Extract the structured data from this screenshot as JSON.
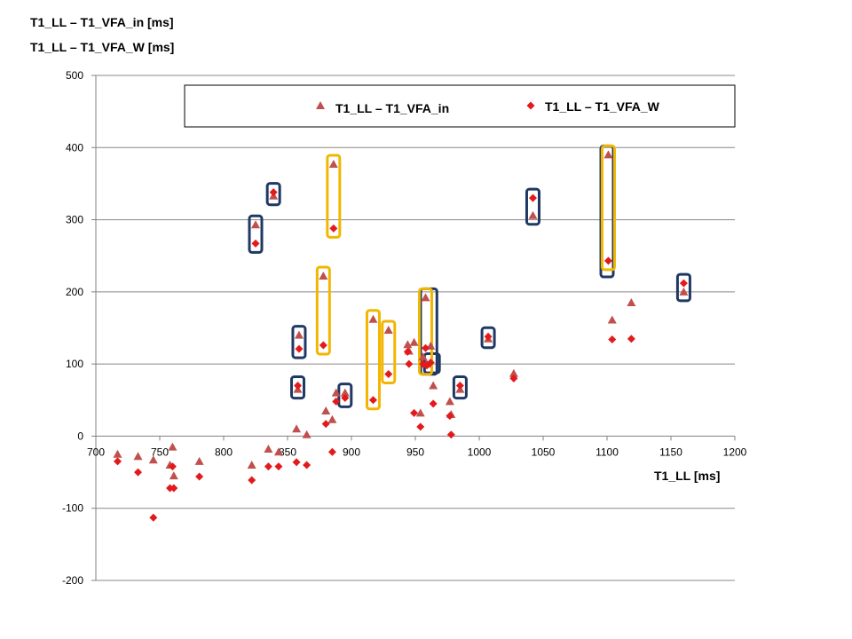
{
  "chart_data": {
    "type": "scatter",
    "ylabel_lines": [
      "T1_LL – T1_VFA_in [ms]",
      "T1_LL – T1_VFA_W [ms]"
    ],
    "xlabel": "T1_LL [ms]",
    "xlim": [
      700,
      1200
    ],
    "ylim": [
      -200,
      500
    ],
    "x_ticks": [
      700,
      750,
      800,
      850,
      900,
      950,
      1000,
      1050,
      1100,
      1150,
      1200
    ],
    "y_ticks": [
      -200,
      -100,
      0,
      100,
      200,
      300,
      400,
      500
    ],
    "grid": "horizontal",
    "legend_position": "top",
    "colors": {
      "series_in": "#c0504d",
      "series_w": "#e31a1c",
      "box_navy": "#1f3864",
      "box_gold": "#f2b600",
      "grid": "#888888"
    },
    "series": [
      {
        "name": "T1_LL – T1_VFA_in",
        "marker": "triangle",
        "points": [
          [
            717,
            -25
          ],
          [
            733,
            -28
          ],
          [
            745,
            -33
          ],
          [
            758,
            -40
          ],
          [
            760,
            -15
          ],
          [
            761,
            -55
          ],
          [
            781,
            -35
          ],
          [
            822,
            -40
          ],
          [
            825,
            293
          ],
          [
            835,
            -18
          ],
          [
            839,
            333
          ],
          [
            843,
            -22
          ],
          [
            857,
            10
          ],
          [
            858,
            65
          ],
          [
            859,
            140
          ],
          [
            865,
            2
          ],
          [
            878,
            222
          ],
          [
            880,
            35
          ],
          [
            885,
            23
          ],
          [
            886,
            377
          ],
          [
            888,
            60
          ],
          [
            895,
            60
          ],
          [
            917,
            162
          ],
          [
            929,
            147
          ],
          [
            944,
            127
          ],
          [
            945,
            118
          ],
          [
            949,
            130
          ],
          [
            954,
            32
          ],
          [
            956,
            110
          ],
          [
            958,
            192
          ],
          [
            959,
            100
          ],
          [
            962,
            125
          ],
          [
            964,
            70
          ],
          [
            977,
            48
          ],
          [
            978,
            30
          ],
          [
            985,
            65
          ],
          [
            1007,
            135
          ],
          [
            1027,
            87
          ],
          [
            1042,
            306
          ],
          [
            1101,
            390
          ],
          [
            1104,
            161
          ],
          [
            1119,
            185
          ],
          [
            1160,
            200
          ]
        ]
      },
      {
        "name": "T1_LL – T1_VFA_W",
        "marker": "diamond",
        "points": [
          [
            717,
            -35
          ],
          [
            733,
            -50
          ],
          [
            745,
            -113
          ],
          [
            758,
            -72
          ],
          [
            760,
            -42
          ],
          [
            761,
            -72
          ],
          [
            781,
            -56
          ],
          [
            822,
            -61
          ],
          [
            825,
            267
          ],
          [
            835,
            -42
          ],
          [
            839,
            338
          ],
          [
            843,
            -42
          ],
          [
            857,
            -36
          ],
          [
            858,
            70
          ],
          [
            859,
            121
          ],
          [
            865,
            -40
          ],
          [
            878,
            126
          ],
          [
            880,
            17
          ],
          [
            885,
            -22
          ],
          [
            886,
            288
          ],
          [
            888,
            48
          ],
          [
            895,
            53
          ],
          [
            917,
            50
          ],
          [
            929,
            86
          ],
          [
            944,
            117
          ],
          [
            945,
            100
          ],
          [
            949,
            32
          ],
          [
            954,
            13
          ],
          [
            956,
            100
          ],
          [
            958,
            122
          ],
          [
            959,
            98
          ],
          [
            962,
            102
          ],
          [
            964,
            45
          ],
          [
            977,
            28
          ],
          [
            978,
            2
          ],
          [
            985,
            70
          ],
          [
            1007,
            138
          ],
          [
            1027,
            80
          ],
          [
            1042,
            330
          ],
          [
            1101,
            243
          ],
          [
            1104,
            134
          ],
          [
            1119,
            135
          ],
          [
            1160,
            212
          ]
        ]
      }
    ],
    "highlight_boxes": [
      {
        "color": "navy",
        "x": [
          825,
          825
        ],
        "y": [
          267,
          293
        ]
      },
      {
        "color": "navy",
        "x": [
          839,
          839
        ],
        "y": [
          333,
          338
        ]
      },
      {
        "color": "navy",
        "x": [
          859,
          859
        ],
        "y": [
          121,
          140
        ]
      },
      {
        "color": "navy",
        "x": [
          858,
          858
        ],
        "y": [
          65,
          70
        ]
      },
      {
        "color": "navy",
        "x": [
          895,
          895
        ],
        "y": [
          53,
          60
        ]
      },
      {
        "color": "navy",
        "x": [
          959,
          962
        ],
        "y": [
          98,
          192
        ]
      },
      {
        "color": "navy",
        "x": [
          962,
          964
        ],
        "y": [
          102,
          100
        ]
      },
      {
        "color": "navy",
        "x": [
          985,
          985
        ],
        "y": [
          65,
          70
        ]
      },
      {
        "color": "navy",
        "x": [
          1007,
          1007
        ],
        "y": [
          135,
          138
        ]
      },
      {
        "color": "navy",
        "x": [
          1042,
          1042
        ],
        "y": [
          306,
          330
        ]
      },
      {
        "color": "navy",
        "x": [
          1100,
          1100
        ],
        "y": [
          233,
          390
        ]
      },
      {
        "color": "navy",
        "x": [
          1160,
          1160
        ],
        "y": [
          200,
          212
        ]
      },
      {
        "color": "gold",
        "x": [
          886,
          886
        ],
        "y": [
          288,
          377
        ]
      },
      {
        "color": "gold",
        "x": [
          878,
          878
        ],
        "y": [
          126,
          222
        ]
      },
      {
        "color": "gold",
        "x": [
          917,
          917
        ],
        "y": [
          50,
          162
        ]
      },
      {
        "color": "gold",
        "x": [
          929,
          929
        ],
        "y": [
          86,
          147
        ]
      },
      {
        "color": "gold",
        "x": [
          958,
          958
        ],
        "y": [
          98,
          192
        ]
      },
      {
        "color": "gold",
        "x": [
          1101,
          1101
        ],
        "y": [
          243,
          390
        ]
      }
    ]
  }
}
